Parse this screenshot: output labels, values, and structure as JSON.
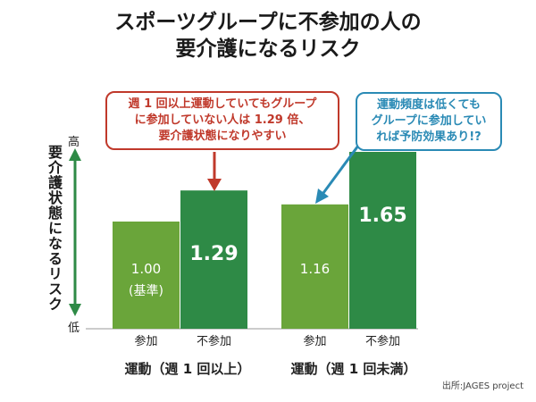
{
  "title": {
    "line1": "スポーツグループに不参加の人の",
    "line2": "要介護になるリスク"
  },
  "callouts": {
    "red": [
      "週 1 回以上運動していてもグループ",
      "に参加していない人は 1.29 倍、",
      "要介護状態になりやすい"
    ],
    "blue": [
      "運動頻度は低くても",
      "グループに参加してい",
      "れば予防効果あり!?"
    ]
  },
  "source": "出所:JAGES project",
  "colors": {
    "participate": "#6aa53a",
    "non_participate": "#2e8a46",
    "red_arrow": "#c0392b",
    "blue_arrow": "#2a8ab5",
    "axis_arrow": "#2e8a46"
  },
  "chart_data": {
    "type": "bar",
    "title": "スポーツグループに不参加の人の要介護になるリスク",
    "ylabel": "要介護状態になるリスク",
    "y_high_label": "高",
    "y_low_label": "低",
    "ylim": [
      0,
      1.65
    ],
    "groups": [
      {
        "name": "運動（週 1 回以上）",
        "bars": [
          {
            "category": "参加",
            "value": 1.0,
            "label": "1.00",
            "sublabel": "(基準)",
            "highlight": false
          },
          {
            "category": "不参加",
            "value": 1.29,
            "label": "1.29",
            "sublabel": "",
            "highlight": true
          }
        ]
      },
      {
        "name": "運動（週 1 回未満）",
        "bars": [
          {
            "category": "参加",
            "value": 1.16,
            "label": "1.16",
            "sublabel": "",
            "highlight": false
          },
          {
            "category": "不参加",
            "value": 1.65,
            "label": "1.65",
            "sublabel": "",
            "highlight": true
          }
        ]
      }
    ]
  }
}
